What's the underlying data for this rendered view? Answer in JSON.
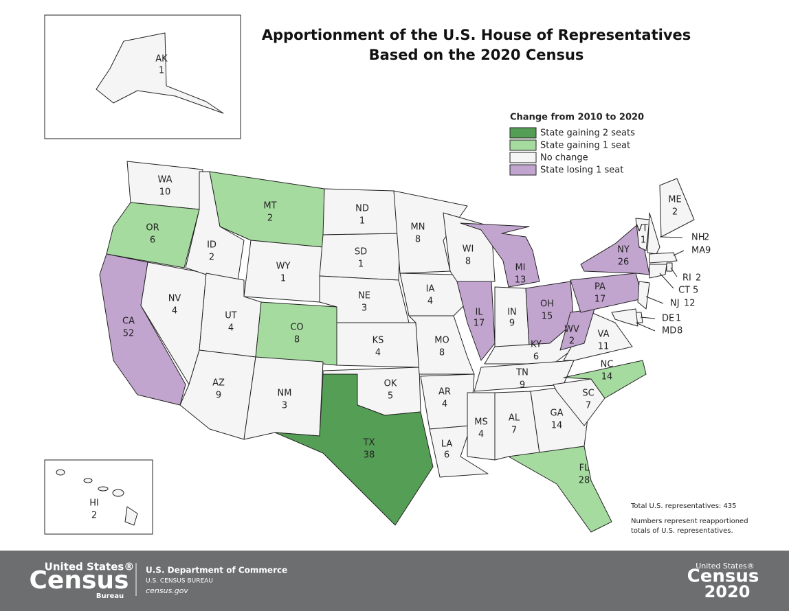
{
  "title_lines": [
    "Apportionment of the U.S. House of Representatives",
    "Based on the 2020 Census"
  ],
  "legend": {
    "title": "Change from 2010 to 2020",
    "items": [
      {
        "label": "State gaining 2 seats",
        "color": "#559e55"
      },
      {
        "label": "State gaining 1 seat",
        "color": "#a6dba0"
      },
      {
        "label": "No change",
        "color": "#f5f5f5"
      },
      {
        "label": "State losing 1 seat",
        "color": "#c2a5cf"
      }
    ]
  },
  "states": [
    {
      "abbr": "WA",
      "seats": 10,
      "color": "#f5f5f5"
    },
    {
      "abbr": "OR",
      "seats": 6,
      "color": "#a6dba0"
    },
    {
      "abbr": "CA",
      "seats": 52,
      "color": "#c2a5cf"
    },
    {
      "abbr": "NV",
      "seats": 4,
      "color": "#f5f5f5"
    },
    {
      "abbr": "ID",
      "seats": 2,
      "color": "#f5f5f5"
    },
    {
      "abbr": "MT",
      "seats": 2,
      "color": "#a6dba0"
    },
    {
      "abbr": "WY",
      "seats": 1,
      "color": "#f5f5f5"
    },
    {
      "abbr": "UT",
      "seats": 4,
      "color": "#f5f5f5"
    },
    {
      "abbr": "CO",
      "seats": 8,
      "color": "#a6dba0"
    },
    {
      "abbr": "AZ",
      "seats": 9,
      "color": "#f5f5f5"
    },
    {
      "abbr": "NM",
      "seats": 3,
      "color": "#f5f5f5"
    },
    {
      "abbr": "ND",
      "seats": 1,
      "color": "#f5f5f5"
    },
    {
      "abbr": "SD",
      "seats": 1,
      "color": "#f5f5f5"
    },
    {
      "abbr": "NE",
      "seats": 3,
      "color": "#f5f5f5"
    },
    {
      "abbr": "KS",
      "seats": 4,
      "color": "#f5f5f5"
    },
    {
      "abbr": "OK",
      "seats": 5,
      "color": "#f5f5f5"
    },
    {
      "abbr": "TX",
      "seats": 38,
      "color": "#559e55"
    },
    {
      "abbr": "MN",
      "seats": 8,
      "color": "#f5f5f5"
    },
    {
      "abbr": "IA",
      "seats": 4,
      "color": "#f5f5f5"
    },
    {
      "abbr": "MO",
      "seats": 8,
      "color": "#f5f5f5"
    },
    {
      "abbr": "AR",
      "seats": 4,
      "color": "#f5f5f5"
    },
    {
      "abbr": "LA",
      "seats": 6,
      "color": "#f5f5f5"
    },
    {
      "abbr": "WI",
      "seats": 8,
      "color": "#f5f5f5"
    },
    {
      "abbr": "IL",
      "seats": 17,
      "color": "#c2a5cf"
    },
    {
      "abbr": "MI",
      "seats": 13,
      "color": "#c2a5cf"
    },
    {
      "abbr": "IN",
      "seats": 9,
      "color": "#f5f5f5"
    },
    {
      "abbr": "OH",
      "seats": 15,
      "color": "#c2a5cf"
    },
    {
      "abbr": "KY",
      "seats": 6,
      "color": "#f5f5f5"
    },
    {
      "abbr": "TN",
      "seats": 9,
      "color": "#f5f5f5"
    },
    {
      "abbr": "MS",
      "seats": 4,
      "color": "#f5f5f5"
    },
    {
      "abbr": "AL",
      "seats": 7,
      "color": "#f5f5f5"
    },
    {
      "abbr": "GA",
      "seats": 14,
      "color": "#f5f5f5"
    },
    {
      "abbr": "FL",
      "seats": 28,
      "color": "#a6dba0"
    },
    {
      "abbr": "SC",
      "seats": 7,
      "color": "#f5f5f5"
    },
    {
      "abbr": "NC",
      "seats": 14,
      "color": "#a6dba0"
    },
    {
      "abbr": "VA",
      "seats": 11,
      "color": "#f5f5f5"
    },
    {
      "abbr": "WV",
      "seats": 2,
      "color": "#c2a5cf"
    },
    {
      "abbr": "PA",
      "seats": 17,
      "color": "#c2a5cf"
    },
    {
      "abbr": "NY",
      "seats": 26,
      "color": "#c2a5cf"
    },
    {
      "abbr": "VT",
      "seats": 1,
      "color": "#f5f5f5"
    },
    {
      "abbr": "NH",
      "seats": 2,
      "color": "#f5f5f5"
    },
    {
      "abbr": "ME",
      "seats": 2,
      "color": "#f5f5f5"
    },
    {
      "abbr": "MA",
      "seats": 9,
      "color": "#f5f5f5"
    },
    {
      "abbr": "RI",
      "seats": 2,
      "color": "#f5f5f5"
    },
    {
      "abbr": "CT",
      "seats": 5,
      "color": "#f5f5f5"
    },
    {
      "abbr": "NJ",
      "seats": 12,
      "color": "#f5f5f5"
    },
    {
      "abbr": "DE",
      "seats": 1,
      "color": "#f5f5f5"
    },
    {
      "abbr": "MD",
      "seats": 8,
      "color": "#f5f5f5"
    },
    {
      "abbr": "AK",
      "seats": 1,
      "color": "#f5f5f5"
    },
    {
      "abbr": "HI",
      "seats": 2,
      "color": "#f5f5f5"
    }
  ],
  "notes": [
    "Total U.S. representatives: 435",
    "Numbers represent reapportioned",
    "totals of U.S. representatives."
  ],
  "footer": {
    "logo_top": "United States®",
    "logo_main": "Census",
    "logo_sub": "Bureau",
    "dept": "U.S. Department of Commerce",
    "bureau": "U.S. CENSUS BUREAU",
    "site": "census.gov",
    "right_top": "United States®",
    "right_main": "Census",
    "right_year": "2020"
  }
}
